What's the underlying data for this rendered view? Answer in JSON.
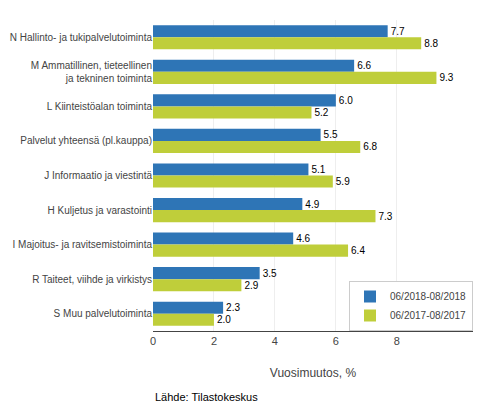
{
  "chart_data": {
    "type": "bar",
    "orientation": "horizontal",
    "categories": [
      "N Hallinto- ja tukipalvelutoiminta",
      "M Ammatillinen, tieteellinen\n   ja tekninen toiminta",
      "L Kiinteistöalan toiminta",
      "Palvelut yhteensä (pl.kauppa)",
      "J Informaatio ja viestintä",
      "H Kuljetus ja varastointi",
      "I Majoitus- ja ravitsemistoiminta",
      "R Taiteet, viihde ja virkistys",
      "S Muu palvelutoiminta"
    ],
    "series": [
      {
        "name": "06/2018-08/2018",
        "color": "#2E75B6",
        "values": [
          7.7,
          6.6,
          6.0,
          5.5,
          5.1,
          4.9,
          4.6,
          3.5,
          2.3
        ],
        "value_labels": [
          "7.7",
          "6.6",
          "6.0",
          "5.5",
          "5.1",
          "4.9",
          "4.6",
          "3.5",
          "2.3"
        ]
      },
      {
        "name": "06/2017-08/2017",
        "color": "#BFCE3A",
        "values": [
          8.8,
          9.3,
          5.2,
          6.8,
          5.9,
          7.3,
          6.4,
          2.9,
          2.0
        ],
        "value_labels": [
          "8.8",
          "9.3",
          "5.2",
          "6.8",
          "5.9",
          "7.3",
          "6.4",
          "2.9",
          "2.0"
        ]
      }
    ],
    "xlabel": "Vuosimuutos, %",
    "xlim": [
      0,
      10.5
    ],
    "xticks": [
      0,
      2,
      4,
      6,
      8
    ],
    "grid": true,
    "legend": "lower right",
    "data_labels": true,
    "annotations": [
      "Lähde: Tilastokeskus"
    ]
  }
}
